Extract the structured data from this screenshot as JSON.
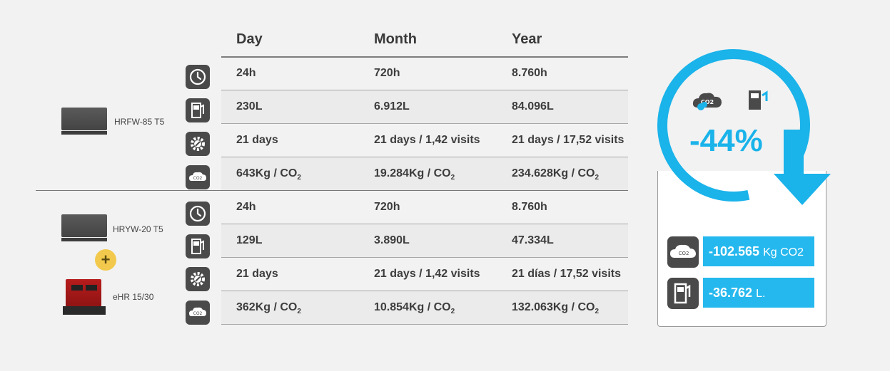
{
  "columns": {
    "day": "Day",
    "month": "Month",
    "year": "Year"
  },
  "product_a": {
    "label": "HRFW-85 T5"
  },
  "product_b": {
    "label": "HRYW-20 T5",
    "plus": "+",
    "addon_label": "eHR 15/30"
  },
  "rows_a": [
    {
      "icon": "clock-icon",
      "day": "24h",
      "month": "720h",
      "year": "8.760h"
    },
    {
      "icon": "fuel-pump-icon",
      "day": "230L",
      "month": "6.912L",
      "year": "84.096L"
    },
    {
      "icon": "gear-wrench-icon",
      "day": "21 days",
      "month": "21 days / 1,42 visits",
      "year": "21 days / 17,52 visits"
    },
    {
      "icon": "co2-cloud-icon",
      "day": "643Kg / CO",
      "month": "19.284Kg / CO",
      "year": "234.628Kg / CO"
    }
  ],
  "rows_b": [
    {
      "icon": "clock-icon",
      "day": "24h",
      "month": "720h",
      "year": "8.760h"
    },
    {
      "icon": "fuel-pump-icon",
      "day": "129L",
      "month": "3.890L",
      "year": "47.334L"
    },
    {
      "icon": "gear-wrench-icon",
      "day": "21 days",
      "month": "21 days / 1,42 visits",
      "year": "21 días / 17,52 visits"
    },
    {
      "icon": "co2-cloud-icon",
      "day": "362Kg / CO",
      "month": "10.854Kg / CO",
      "year": "132.063Kg / CO"
    }
  ],
  "subscript": "2",
  "summary": {
    "percent": "-44%",
    "co2_icon_text": "CO2",
    "co2_value": "-102.565",
    "co2_unit": "Kg CO2",
    "fuel_value": "-36.762",
    "fuel_unit": "L."
  },
  "colors": {
    "accent": "#1ab3ea",
    "box": "#25b8ee",
    "icon_bg": "#4a4a4a",
    "plus": "#f2c94c"
  }
}
